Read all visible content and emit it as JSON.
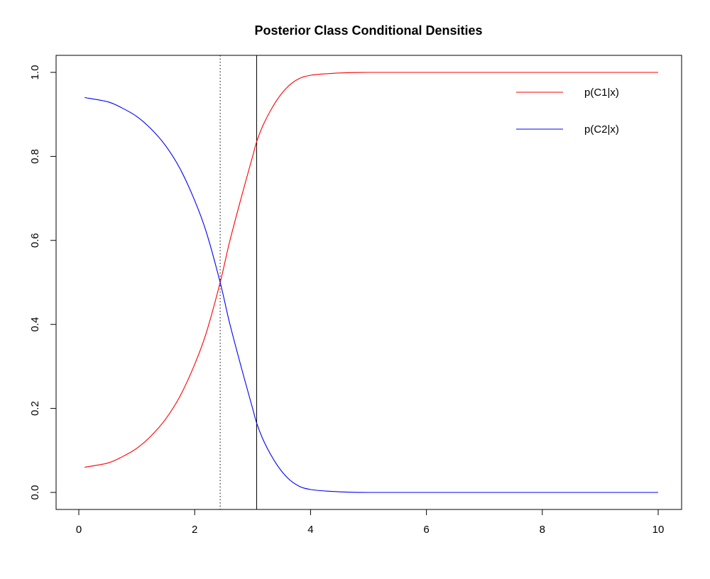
{
  "chart_data": {
    "type": "line",
    "title": "Posterior Class Conditional Densities",
    "xlabel": "",
    "ylabel": "",
    "xlim": [
      0,
      10
    ],
    "ylim": [
      0,
      1
    ],
    "x_ticks": [
      0,
      2,
      4,
      6,
      8,
      10
    ],
    "y_ticks": [
      0.0,
      0.2,
      0.4,
      0.6,
      0.8,
      1.0
    ],
    "x_tick_labels": [
      "0",
      "2",
      "4",
      "6",
      "8",
      "10"
    ],
    "y_tick_labels": [
      "0.0",
      "0.2",
      "0.4",
      "0.6",
      "0.8",
      "1.0"
    ],
    "grid": false,
    "legend_position": "top-right",
    "x": [
      0.1,
      0.5,
      0.75,
      1.0,
      1.25,
      1.5,
      1.75,
      2.0,
      2.2,
      2.44,
      2.6,
      2.8,
      3.0,
      3.07,
      3.2,
      3.4,
      3.6,
      3.8,
      4.0,
      4.3,
      4.6,
      5.0,
      6.0,
      8.0,
      10.0
    ],
    "series": [
      {
        "name": "p(C1|x)",
        "color": "#ff0000",
        "values": [
          0.06,
          0.07,
          0.085,
          0.105,
          0.135,
          0.175,
          0.23,
          0.305,
          0.38,
          0.5,
          0.595,
          0.7,
          0.8,
          0.835,
          0.88,
          0.93,
          0.965,
          0.985,
          0.993,
          0.997,
          0.999,
          1.0,
          1.0,
          1.0,
          1.0
        ]
      },
      {
        "name": "p(C2|x)",
        "color": "#0000ff",
        "values": [
          0.94,
          0.93,
          0.915,
          0.895,
          0.865,
          0.825,
          0.77,
          0.695,
          0.62,
          0.5,
          0.405,
          0.3,
          0.2,
          0.165,
          0.12,
          0.07,
          0.035,
          0.015,
          0.007,
          0.003,
          0.001,
          0.0,
          0.0,
          0.0,
          0.0
        ]
      }
    ],
    "vertical_lines": [
      {
        "x": 2.44,
        "style": "dotted",
        "color": "#000000"
      },
      {
        "x": 3.07,
        "style": "solid",
        "color": "#000000"
      }
    ]
  }
}
